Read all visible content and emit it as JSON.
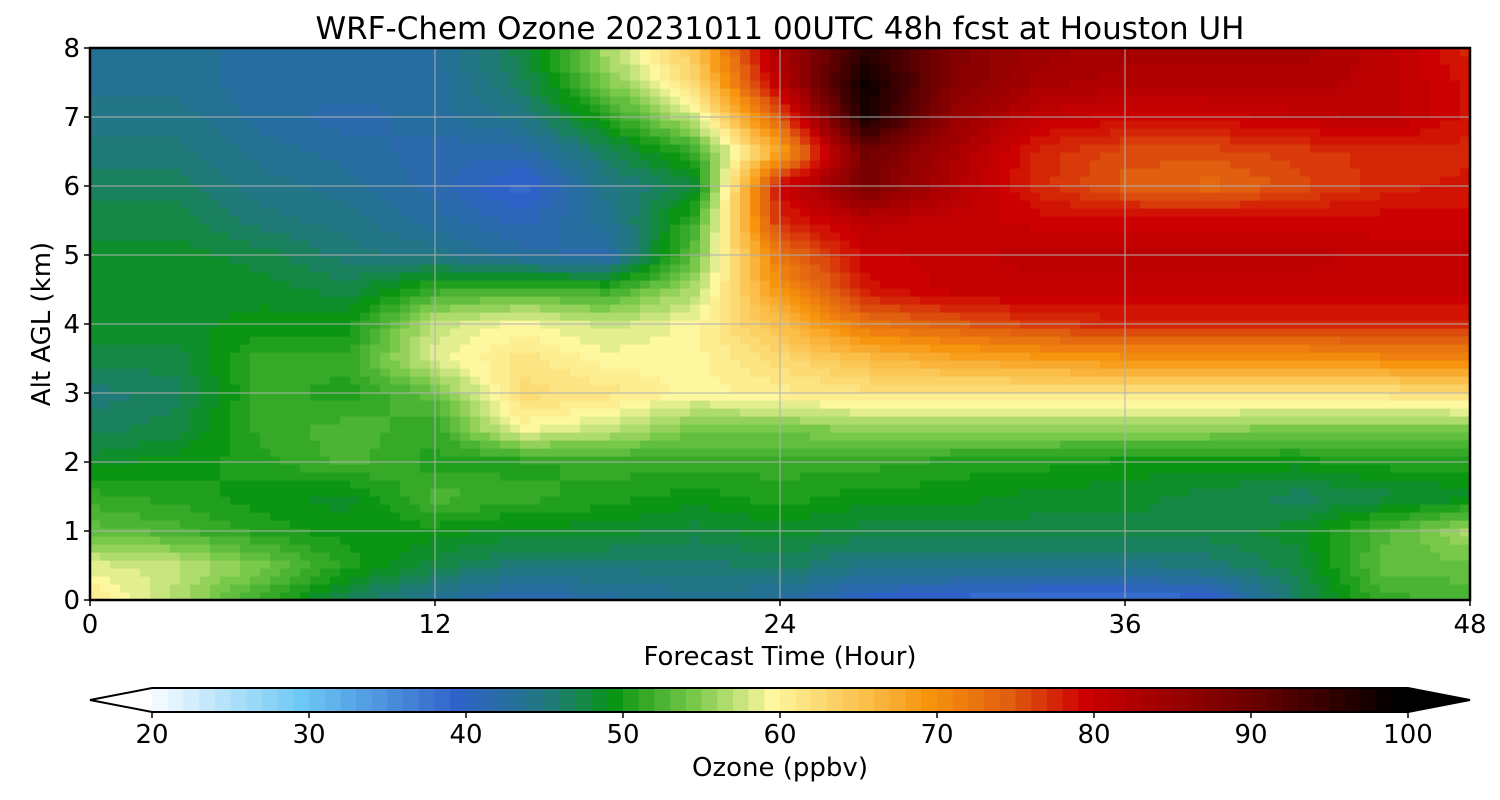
{
  "chart_data": {
    "type": "heatmap",
    "title": "WRF-Chem Ozone  20231011 00UTC 48h fcst at Houston UH",
    "xlabel": "Forecast Time (Hour)",
    "ylabel": "Alt AGL (km)",
    "xlim": [
      0,
      48
    ],
    "ylim": [
      0,
      8
    ],
    "x_ticks": [
      "0",
      "12",
      "24",
      "36",
      "48"
    ],
    "y_ticks": [
      "0",
      "1",
      "2",
      "3",
      "4",
      "5",
      "6",
      "7",
      "8"
    ],
    "grid": true,
    "x": [
      0,
      3,
      6,
      9,
      12,
      15,
      18,
      21,
      24,
      27,
      30,
      33,
      36,
      39,
      42,
      45,
      48
    ],
    "y": [
      0,
      0.5,
      1,
      1.5,
      2,
      2.5,
      3,
      3.5,
      4,
      4.5,
      5,
      5.5,
      6,
      6.5,
      7,
      7.5,
      8
    ],
    "values": [
      [
        62,
        57,
        52,
        47,
        44,
        41,
        43,
        44,
        43,
        40,
        39,
        38,
        38,
        39,
        47,
        52,
        53
      ],
      [
        59,
        58,
        55,
        51,
        48,
        46,
        46,
        46,
        47,
        45,
        45,
        45,
        45,
        46,
        48,
        54,
        54
      ],
      [
        54,
        53,
        51,
        50,
        50,
        49,
        49,
        48,
        49,
        48,
        48,
        48,
        48,
        48,
        49,
        53,
        57
      ],
      [
        52,
        51,
        50,
        49,
        53,
        52,
        51,
        50,
        51,
        50,
        50,
        49,
        49,
        48,
        47,
        48,
        49
      ],
      [
        49,
        50,
        51,
        53,
        51,
        51,
        52,
        52,
        52,
        52,
        51,
        51,
        50,
        50,
        50,
        51,
        51
      ],
      [
        47,
        48,
        52,
        53,
        52,
        60,
        58,
        55,
        55,
        56,
        56,
        56,
        56,
        56,
        55,
        55,
        55
      ],
      [
        46,
        47,
        52,
        51,
        54,
        63,
        62,
        60,
        61,
        62,
        62,
        62,
        62,
        62,
        62,
        62,
        63
      ],
      [
        48,
        48,
        52,
        52,
        59,
        62,
        60,
        60,
        63,
        66,
        68,
        69,
        70,
        70,
        70,
        71,
        71
      ],
      [
        49,
        49,
        50,
        50,
        58,
        60,
        58,
        60,
        66,
        73,
        75,
        77,
        78,
        78,
        78,
        78,
        78
      ],
      [
        49,
        49,
        49,
        48,
        52,
        53,
        52,
        57,
        70,
        79,
        81,
        81,
        81,
        81,
        81,
        81,
        81
      ],
      [
        49,
        49,
        48,
        46,
        45,
        43,
        42,
        54,
        73,
        80,
        81,
        82,
        82,
        82,
        82,
        81,
        81
      ],
      [
        48,
        48,
        46,
        45,
        43,
        41,
        44,
        52,
        78,
        82,
        81,
        80,
        80,
        80,
        80,
        80,
        80
      ],
      [
        47,
        47,
        45,
        44,
        42,
        39,
        45,
        48,
        80,
        89,
        83,
        78,
        75,
        74,
        76,
        78,
        79
      ],
      [
        46,
        46,
        44,
        43,
        42,
        42,
        47,
        52,
        68,
        90,
        84,
        78,
        76,
        76,
        77,
        78,
        78
      ],
      [
        45,
        45,
        43,
        42,
        43,
        45,
        51,
        58,
        75,
        98,
        86,
        81,
        80,
        80,
        81,
        82,
        79
      ],
      [
        44,
        44,
        43,
        43,
        43,
        47,
        55,
        63,
        82,
        99,
        88,
        84,
        83,
        83,
        83,
        82,
        79
      ],
      [
        44,
        44,
        43,
        43,
        43,
        48,
        57,
        65,
        84,
        96,
        88,
        85,
        84,
        84,
        84,
        82,
        78
      ]
    ],
    "colorbar": {
      "label": "Ozone  (ppbv)",
      "min": 20,
      "max": 100,
      "ticks": [
        20,
        30,
        40,
        50,
        60,
        70,
        80,
        90,
        100
      ],
      "extend": "both",
      "levels_per_unit": 1,
      "stops": [
        [
          20,
          "#ffffff"
        ],
        [
          30,
          "#6ec8f5"
        ],
        [
          40,
          "#2f62c8"
        ],
        [
          46,
          "#1f7a78"
        ],
        [
          50,
          "#0a9612"
        ],
        [
          55,
          "#78c84a"
        ],
        [
          60,
          "#fdf7a0"
        ],
        [
          65,
          "#fbc858"
        ],
        [
          70,
          "#f7940d"
        ],
        [
          75,
          "#e06010"
        ],
        [
          80,
          "#cc0000"
        ],
        [
          90,
          "#700000"
        ],
        [
          100,
          "#000000"
        ]
      ]
    },
    "colors": {
      "grid": "#b0b0b0",
      "frame": "#000000"
    }
  }
}
